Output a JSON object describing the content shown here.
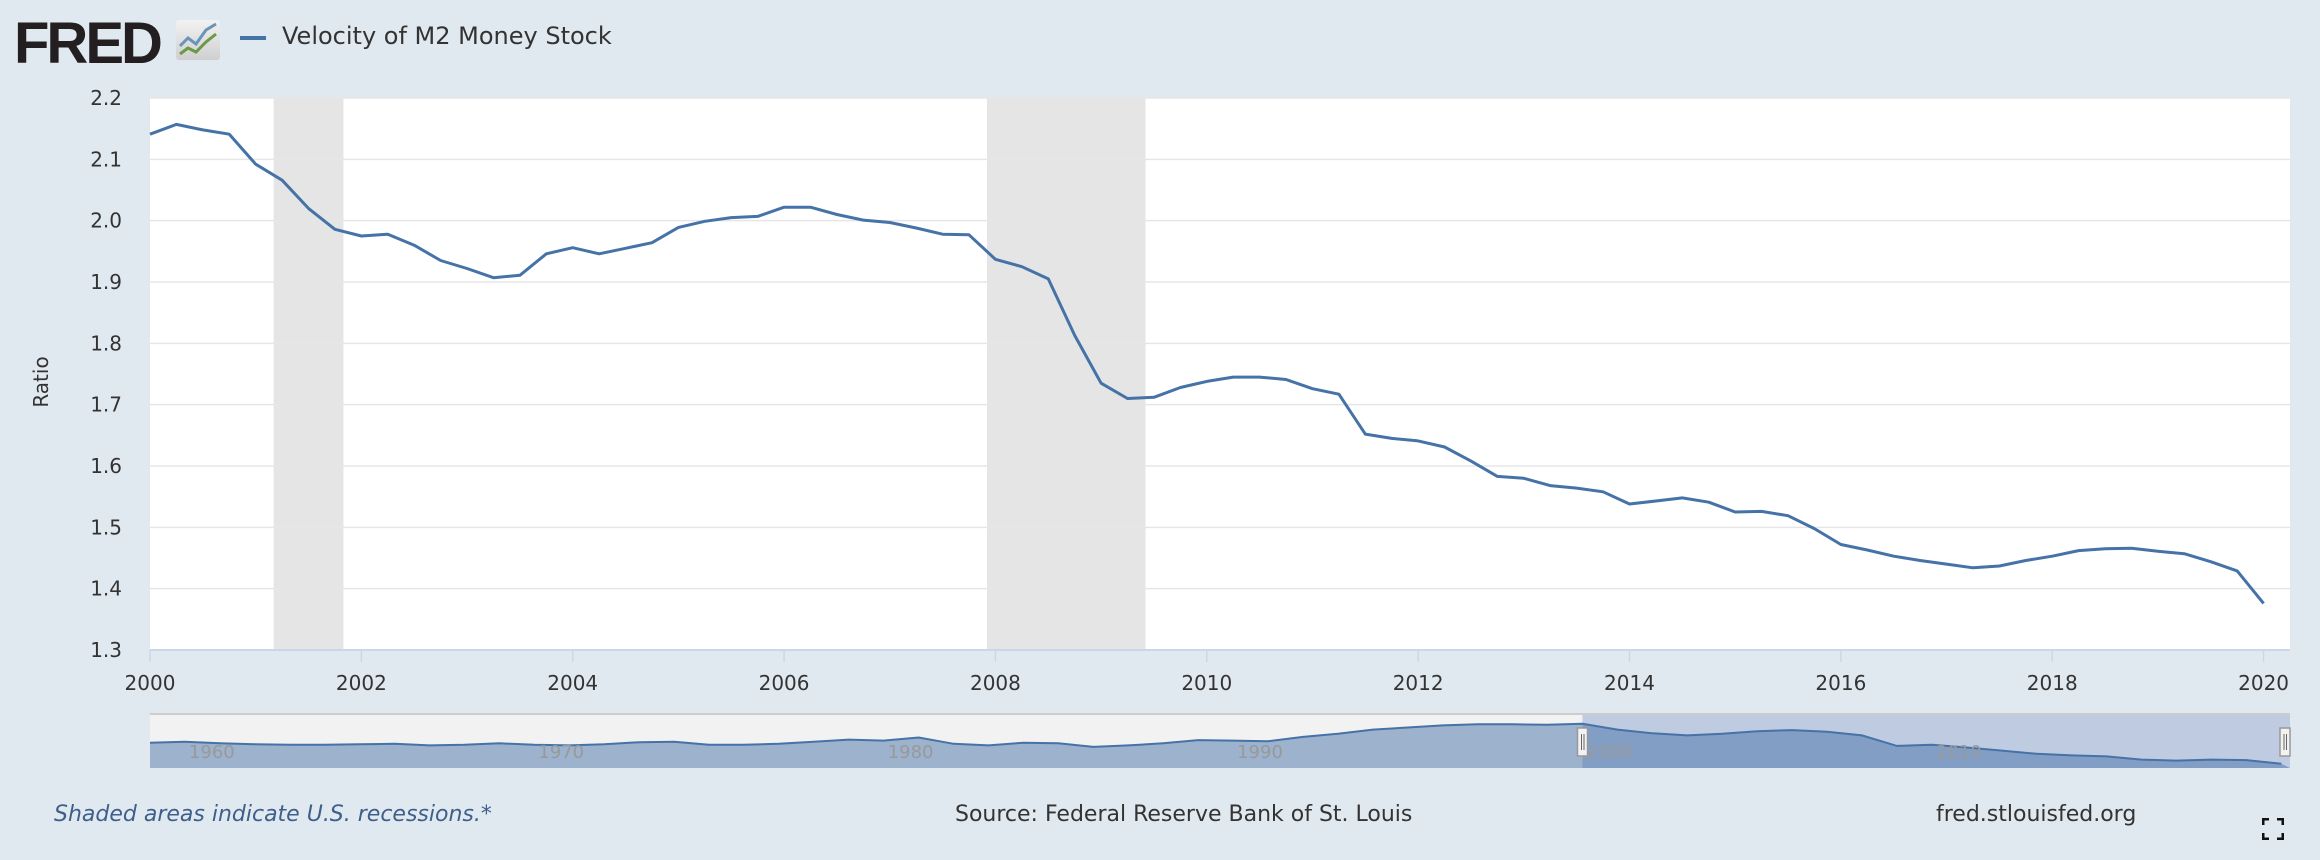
{
  "header": {
    "logo": "FRED",
    "title": "Velocity of M2 Money Stock"
  },
  "footer": {
    "recession_note": "Shaded areas indicate U.S. recessions.*",
    "source": "Source: Federal Reserve Bank of St. Louis",
    "site": "fred.stlouisfed.org"
  },
  "colors": {
    "series": "#4572a7",
    "recession": "#e5e5e5",
    "background": "#e1e9f0"
  },
  "chart_data": {
    "type": "line",
    "title": "Velocity of M2 Money Stock",
    "xlabel": "",
    "ylabel": "Ratio",
    "xlim": [
      2000,
      2020.25
    ],
    "ylim": [
      1.3,
      2.2
    ],
    "grid": true,
    "legend_position": "top-left",
    "x_ticks": [
      "2000",
      "2002",
      "2004",
      "2006",
      "2008",
      "2010",
      "2012",
      "2014",
      "2016",
      "2018",
      "2020"
    ],
    "y_ticks": [
      "1.3",
      "1.4",
      "1.5",
      "1.6",
      "1.7",
      "1.8",
      "1.9",
      "2.0",
      "2.1",
      "2.2"
    ],
    "x_start": 2000,
    "x_step": 0.25,
    "series": [
      {
        "name": "Velocity of M2 Money Stock",
        "values": [
          2.141,
          2.157,
          2.148,
          2.141,
          2.092,
          2.066,
          2.02,
          1.986,
          1.975,
          1.978,
          1.96,
          1.935,
          1.922,
          1.907,
          1.911,
          1.946,
          1.956,
          1.946,
          1.955,
          1.964,
          1.989,
          1.999,
          2.005,
          2.007,
          2.022,
          2.022,
          2.01,
          2.001,
          1.997,
          1.988,
          1.978,
          1.977,
          1.937,
          1.925,
          1.905,
          1.813,
          1.735,
          1.71,
          1.712,
          1.728,
          1.738,
          1.745,
          1.745,
          1.741,
          1.726,
          1.717,
          1.652,
          1.645,
          1.641,
          1.631,
          1.608,
          1.583,
          1.58,
          1.568,
          1.564,
          1.558,
          1.538,
          1.543,
          1.548,
          1.541,
          1.525,
          1.526,
          1.519,
          1.498,
          1.472,
          1.463,
          1.453,
          1.446,
          1.44,
          1.434,
          1.437,
          1.446,
          1.453,
          1.462,
          1.465,
          1.466,
          1.461,
          1.457,
          1.444,
          1.429,
          1.376
        ]
      }
    ],
    "recessions": [
      [
        2001.17,
        2001.83
      ],
      [
        2007.92,
        2009.42
      ]
    ],
    "navigator": {
      "xlim": [
        1959,
        2020.25
      ],
      "ylim": [
        1.3,
        2.25
      ],
      "x_labels": [
        "1960",
        "1970",
        "1980",
        "1990",
        "2000",
        "2010"
      ],
      "selection": [
        2000,
        2020.25
      ],
      "years": [
        1959,
        1960,
        1961,
        1962,
        1963,
        1964,
        1965,
        1966,
        1967,
        1968,
        1969,
        1970,
        1971,
        1972,
        1973,
        1974,
        1975,
        1976,
        1977,
        1978,
        1979,
        1980,
        1981,
        1982,
        1983,
        1984,
        1985,
        1986,
        1987,
        1988,
        1989,
        1990,
        1991,
        1992,
        1993,
        1994,
        1995,
        1996,
        1997,
        1998,
        1999,
        2000,
        2001,
        2002,
        2003,
        2004,
        2005,
        2006,
        2007,
        2008,
        2009,
        2010,
        2011,
        2012,
        2013,
        2014,
        2015,
        2016,
        2017,
        2018,
        2019,
        2020
      ],
      "values": [
        1.78,
        1.8,
        1.77,
        1.75,
        1.74,
        1.74,
        1.75,
        1.76,
        1.73,
        1.74,
        1.77,
        1.74,
        1.73,
        1.75,
        1.79,
        1.8,
        1.74,
        1.74,
        1.76,
        1.8,
        1.84,
        1.82,
        1.88,
        1.76,
        1.73,
        1.78,
        1.77,
        1.7,
        1.73,
        1.77,
        1.83,
        1.82,
        1.81,
        1.89,
        1.95,
        2.03,
        2.07,
        2.11,
        2.13,
        2.13,
        2.12,
        2.14,
        2.03,
        1.96,
        1.92,
        1.95,
        2.0,
        2.02,
        1.99,
        1.92,
        1.72,
        1.74,
        1.69,
        1.63,
        1.57,
        1.54,
        1.52,
        1.46,
        1.44,
        1.46,
        1.45,
        1.38
      ]
    }
  }
}
